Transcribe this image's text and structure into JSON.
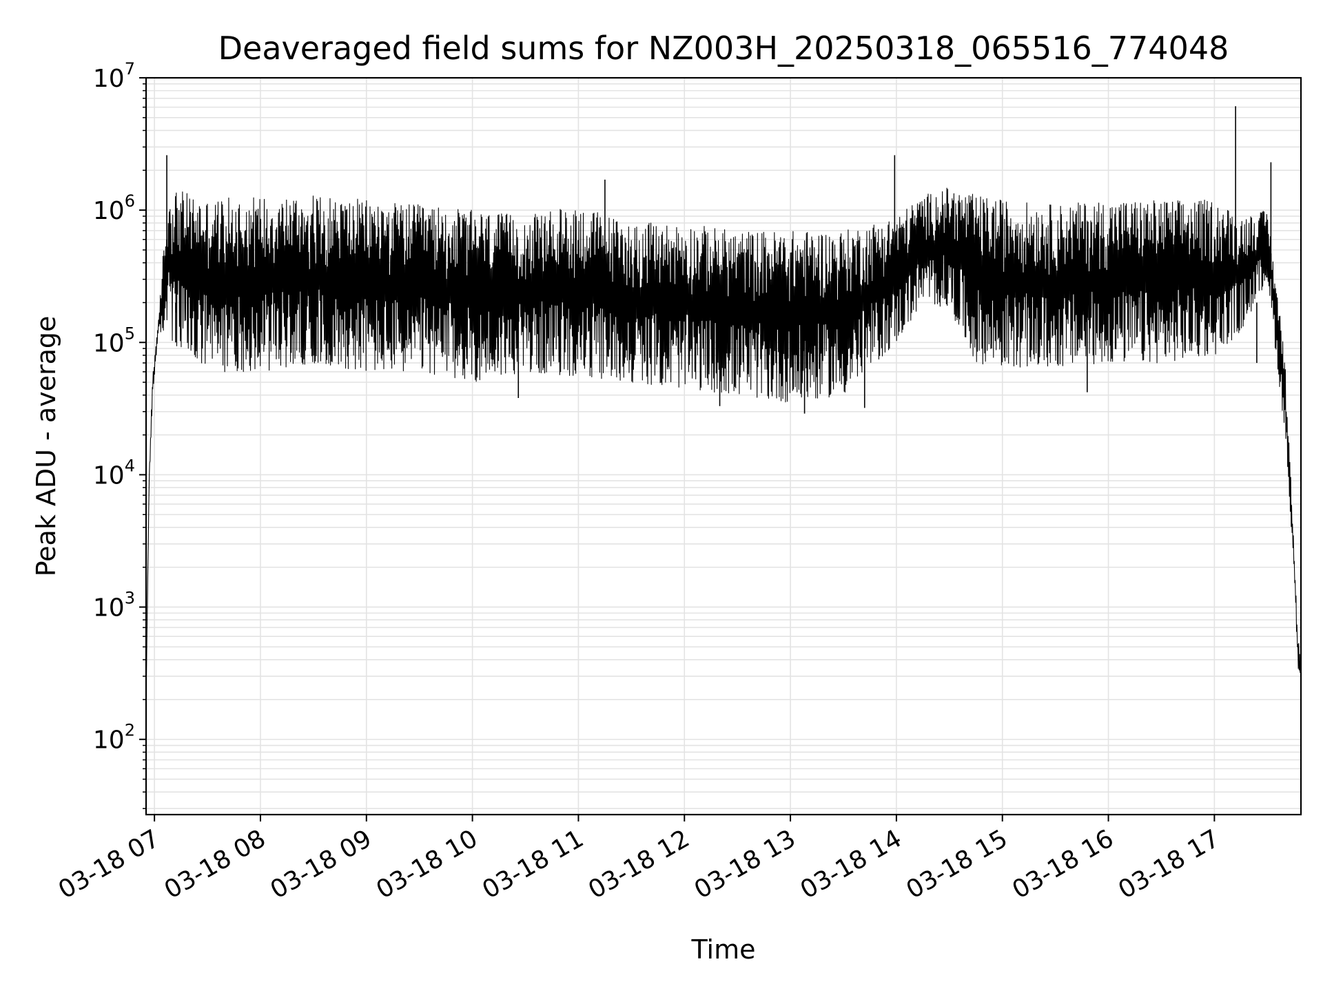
{
  "chart_data": {
    "type": "line",
    "title": "Deaveraged field sums for NZ003H_20250318_065516_774048",
    "xlabel": "Time",
    "ylabel": "Peak ADU - average",
    "x_scale": "time",
    "y_scale": "log",
    "xlim": [
      "2025-03-18T06:55:16",
      "2025-03-18T17:49:00"
    ],
    "ylim": [
      27,
      10000000
    ],
    "grid": true,
    "legend": "none",
    "line_color": "#000000",
    "grid_color": "#e3e3e3",
    "x_ticks": [
      {
        "value": "2025-03-18T07:00:00",
        "label": "03-18 07"
      },
      {
        "value": "2025-03-18T08:00:00",
        "label": "03-18 08"
      },
      {
        "value": "2025-03-18T09:00:00",
        "label": "03-18 09"
      },
      {
        "value": "2025-03-18T10:00:00",
        "label": "03-18 10"
      },
      {
        "value": "2025-03-18T11:00:00",
        "label": "03-18 11"
      },
      {
        "value": "2025-03-18T12:00:00",
        "label": "03-18 12"
      },
      {
        "value": "2025-03-18T13:00:00",
        "label": "03-18 13"
      },
      {
        "value": "2025-03-18T14:00:00",
        "label": "03-18 14"
      },
      {
        "value": "2025-03-18T15:00:00",
        "label": "03-18 15"
      },
      {
        "value": "2025-03-18T16:00:00",
        "label": "03-18 16"
      },
      {
        "value": "2025-03-18T17:00:00",
        "label": "03-18 17"
      }
    ],
    "y_ticks": [
      {
        "value": 100,
        "base": "10",
        "exp": "2"
      },
      {
        "value": 1000,
        "base": "10",
        "exp": "3"
      },
      {
        "value": 10000,
        "base": "10",
        "exp": "4"
      },
      {
        "value": 100000,
        "base": "10",
        "exp": "5"
      },
      {
        "value": 1000000,
        "base": "10",
        "exp": "6"
      },
      {
        "value": 10000000,
        "base": "10",
        "exp": "7"
      }
    ],
    "series": [
      {
        "envelope": {
          "x": [
            "2025-03-18T06:55:16",
            "2025-03-18T06:57:00",
            "2025-03-18T06:59:00",
            "2025-03-18T07:02:00",
            "2025-03-18T07:05:00",
            "2025-03-18T07:08:00",
            "2025-03-18T07:10:00",
            "2025-03-18T07:15:00",
            "2025-03-18T07:30:00",
            "2025-03-18T08:00:00",
            "2025-03-18T08:30:00",
            "2025-03-18T09:00:00",
            "2025-03-18T09:30:00",
            "2025-03-18T10:00:00",
            "2025-03-18T10:30:00",
            "2025-03-18T11:00:00",
            "2025-03-18T11:30:00",
            "2025-03-18T12:00:00",
            "2025-03-18T12:30:00",
            "2025-03-18T13:00:00",
            "2025-03-18T13:30:00",
            "2025-03-18T14:00:00",
            "2025-03-18T14:15:00",
            "2025-03-18T14:30:00",
            "2025-03-18T14:45:00",
            "2025-03-18T15:00:00",
            "2025-03-18T15:30:00",
            "2025-03-18T16:00:00",
            "2025-03-18T16:30:00",
            "2025-03-18T17:00:00",
            "2025-03-18T17:15:00",
            "2025-03-18T17:30:00",
            "2025-03-18T17:40:00",
            "2025-03-18T17:45:00",
            "2025-03-18T17:47:00",
            "2025-03-18T17:49:00"
          ],
          "high": [
            200,
            10000,
            60000,
            130000,
            500000,
            1200000,
            1500000,
            1400000,
            1200000,
            1300000,
            1300000,
            1200000,
            1100000,
            1000000,
            900000,
            1100000,
            800000,
            800000,
            700000,
            700000,
            700000,
            900000,
            1300000,
            1500000,
            1300000,
            1200000,
            1100000,
            1200000,
            1200000,
            1200000,
            900000,
            1000000,
            80000,
            3000,
            700,
            500
          ],
          "low": [
            200,
            8000,
            40000,
            110000,
            120000,
            150000,
            100000,
            80000,
            60000,
            60000,
            70000,
            60000,
            60000,
            50000,
            60000,
            55000,
            50000,
            45000,
            40000,
            35000,
            40000,
            100000,
            200000,
            180000,
            70000,
            65000,
            65000,
            70000,
            70000,
            80000,
            120000,
            300000,
            20000,
            2000,
            400,
            200
          ]
        },
        "spikes": [
          {
            "x": "2025-03-18T07:07:00",
            "y": 2600000
          },
          {
            "x": "2025-03-18T11:15:00",
            "y": 1700000
          },
          {
            "x": "2025-03-18T13:59:00",
            "y": 2600000
          },
          {
            "x": "2025-03-18T17:12:00",
            "y": 6100000
          },
          {
            "x": "2025-03-18T17:32:00",
            "y": 2300000
          }
        ],
        "dips": [
          {
            "x": "2025-03-18T07:12:00",
            "y": 100000
          },
          {
            "x": "2025-03-18T10:26:00",
            "y": 38000
          },
          {
            "x": "2025-03-18T12:20:00",
            "y": 33000
          },
          {
            "x": "2025-03-18T13:08:00",
            "y": 29000
          },
          {
            "x": "2025-03-18T13:42:00",
            "y": 32000
          },
          {
            "x": "2025-03-18T15:48:00",
            "y": 42000
          },
          {
            "x": "2025-03-18T17:24:00",
            "y": 70000
          }
        ]
      }
    ]
  }
}
